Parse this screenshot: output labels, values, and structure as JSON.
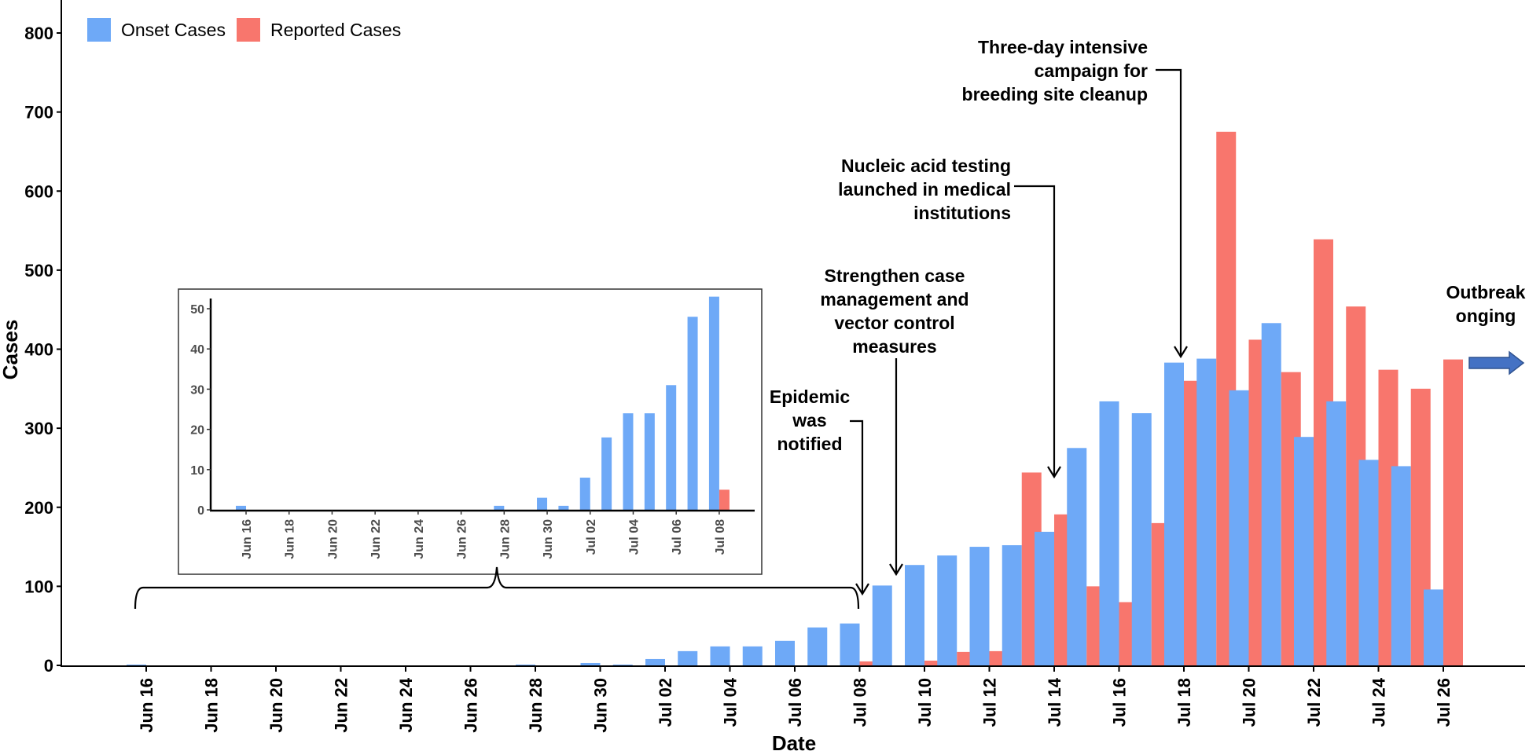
{
  "chart_data": {
    "type": "bar",
    "title": "",
    "xlabel": "Date",
    "ylabel": "Cases",
    "ylim": [
      0,
      830
    ],
    "yticks": [
      0,
      100,
      200,
      300,
      400,
      500,
      600,
      700,
      800
    ],
    "legend": {
      "position": "top-left",
      "entries": [
        {
          "name": "Onset Cases",
          "color": "#6EA9F7"
        },
        {
          "name": "Reported Cases",
          "color": "#F8766D"
        }
      ]
    },
    "xtick_labels": [
      "Jun 16",
      "Jun 18",
      "Jun 20",
      "Jun 22",
      "Jun 24",
      "Jun 26",
      "Jun 28",
      "Jun 30",
      "Jul 02",
      "Jul 04",
      "Jul 06",
      "Jul 08",
      "Jul 10",
      "Jul 12",
      "Jul 14",
      "Jul 16",
      "Jul 18",
      "Jul 20",
      "Jul 22",
      "Jul 24",
      "Jul 26"
    ],
    "categories": [
      "Jun 16",
      "Jun 17",
      "Jun 18",
      "Jun 19",
      "Jun 20",
      "Jun 21",
      "Jun 22",
      "Jun 23",
      "Jun 24",
      "Jun 25",
      "Jun 26",
      "Jun 27",
      "Jun 28",
      "Jun 29",
      "Jun 30",
      "Jul 01",
      "Jul 02",
      "Jul 03",
      "Jul 04",
      "Jul 05",
      "Jul 06",
      "Jul 07",
      "Jul 08",
      "Jul 09",
      "Jul 10",
      "Jul 11",
      "Jul 12",
      "Jul 13",
      "Jul 14",
      "Jul 15",
      "Jul 16",
      "Jul 17",
      "Jul 18",
      "Jul 19",
      "Jul 20",
      "Jul 21",
      "Jul 22",
      "Jul 23",
      "Jul 24",
      "Jul 25",
      "Jul 26"
    ],
    "series": [
      {
        "name": "Onset Cases",
        "color": "#6EA9F7",
        "values": [
          1,
          0,
          0,
          0,
          0,
          0,
          0,
          0,
          0,
          0,
          0,
          0,
          1,
          0,
          3,
          1,
          8,
          18,
          24,
          24,
          31,
          48,
          53,
          101,
          127,
          139,
          150,
          152,
          169,
          275,
          334,
          319,
          383,
          388,
          348,
          433,
          289,
          334,
          260,
          252,
          96
        ]
      },
      {
        "name": "Reported Cases",
        "color": "#F8766D",
        "values": [
          0,
          0,
          0,
          0,
          0,
          0,
          0,
          0,
          0,
          0,
          0,
          0,
          0,
          0,
          0,
          0,
          0,
          0,
          0,
          0,
          0,
          0,
          5,
          0,
          6,
          17,
          18,
          244,
          191,
          100,
          80,
          180,
          360,
          675,
          412,
          371,
          539,
          454,
          374,
          350,
          387
        ]
      }
    ],
    "inset": {
      "range": [
        "Jun 16",
        "Jul 08"
      ],
      "ylim": [
        0,
        55
      ],
      "yticks": [
        0,
        10,
        20,
        30,
        40,
        50
      ],
      "xtick_labels": [
        "Jun 16",
        "Jun 18",
        "Jun 20",
        "Jun 22",
        "Jun 24",
        "Jun 26",
        "Jun 28",
        "Jun 30",
        "Jul 02",
        "Jul 04",
        "Jul 06",
        "Jul 08"
      ]
    },
    "annotations": [
      {
        "id": "epidemic-notified",
        "lines": [
          "Epidemic",
          "was",
          "notified"
        ],
        "date": "Jul 08"
      },
      {
        "id": "strengthen-measures",
        "lines": [
          "Strengthen case",
          "management and",
          "vector control",
          "measures"
        ],
        "date": "Jul 09"
      },
      {
        "id": "nucleic-acid",
        "lines": [
          "Nucleic acid testing",
          "launched in medical",
          "institutions"
        ],
        "date": "Jul 14"
      },
      {
        "id": "cleanup-campaign",
        "lines": [
          "Three-day intensive",
          "campaign for",
          "breeding site cleanup"
        ],
        "date": "Jul 18"
      },
      {
        "id": "outbreak-ongoing",
        "lines": [
          "Outbreak",
          "onging"
        ],
        "date": "Jul 27"
      }
    ]
  }
}
